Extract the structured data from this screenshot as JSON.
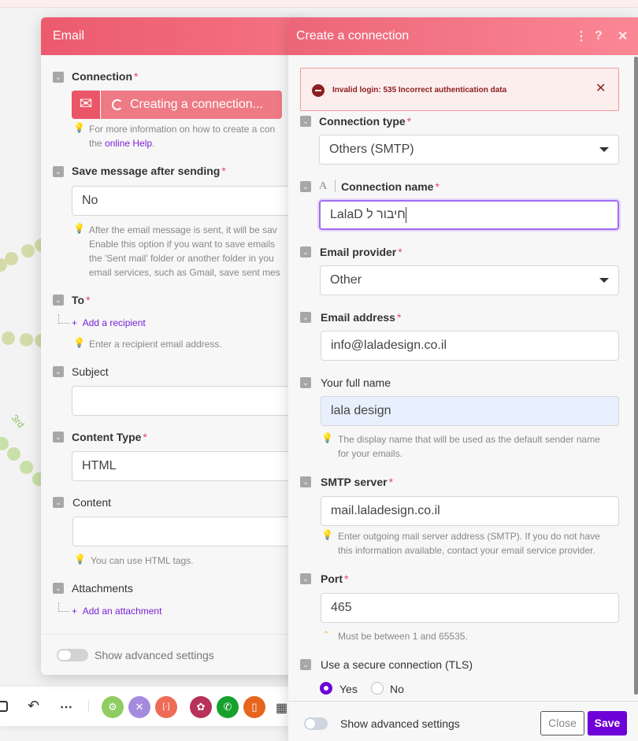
{
  "canvas": {
    "route_label": "3rd"
  },
  "email_panel": {
    "title": "Email",
    "connection": {
      "label": "Connection",
      "status": "Creating a connection...",
      "hint_prefix": "For more information on how to create a con",
      "hint_line2_prefix": "the ",
      "hint_link": "online Help",
      "hint_suffix": "."
    },
    "save_message": {
      "label": "Save message after sending",
      "value": "No",
      "hint": [
        "After the email message is sent, it will be sav",
        "Enable this option if you want to save emails",
        "the 'Sent mail' folder or another folder in you",
        "email services, such as Gmail, save sent mes"
      ]
    },
    "to": {
      "label": "To",
      "add_label": "Add a recipient",
      "hint": "Enter a recipient email address."
    },
    "subject": {
      "label": "Subject",
      "value": ""
    },
    "content_type": {
      "label": "Content Type",
      "value": "HTML"
    },
    "content": {
      "label": "Content",
      "value": "",
      "hint": "You can use HTML tags."
    },
    "attachments": {
      "label": "Attachments",
      "add_label": "Add an attachment"
    },
    "advanced_label": "Show advanced settings"
  },
  "toolbar": {
    "more": "⋯"
  },
  "connection_panel": {
    "title": "Create a connection",
    "error": "Invalid login: 535 Incorrect authentication data",
    "connection_type": {
      "label": "Connection type",
      "value": "Others (SMTP)"
    },
    "connection_name": {
      "label": "Connection name",
      "value": "חיבור ל LalaD"
    },
    "email_provider": {
      "label": "Email provider",
      "value": "Other"
    },
    "email_address": {
      "label": "Email address",
      "value": "info@laladesign.co.il"
    },
    "full_name": {
      "label": "Your full name",
      "value": "lala design",
      "hint": [
        "The display name that will be used as the default sender name",
        "for your emails."
      ]
    },
    "smtp_server": {
      "label": "SMTP server",
      "value": "mail.laladesign.co.il",
      "hint": [
        "Enter outgoing mail server address (SMTP). If you do not have",
        "this information available, contact your email service provider."
      ]
    },
    "port": {
      "label": "Port",
      "value": "465",
      "hint": "Must be between 1 and 65535."
    },
    "tls": {
      "label": "Use a secure connection (TLS)",
      "options": [
        "Yes",
        "No"
      ],
      "selected": "Yes"
    },
    "advanced_label": "Show advanced settings",
    "close_label": "Close",
    "save_label": "Save"
  },
  "colors": {
    "header": "#ee5f72",
    "accent": "#7a00d6",
    "error_bg": "#fdeeee"
  }
}
